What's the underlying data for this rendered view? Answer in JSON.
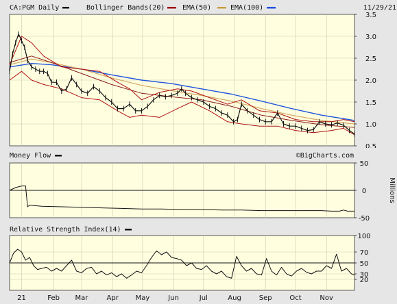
{
  "header": {
    "symbol_label": "CA:PGM Daily",
    "legend": [
      {
        "label": "Bollinger Bands(20)",
        "color": "#a01010"
      },
      {
        "label": "EMA(50)",
        "color": "#8b0000"
      },
      {
        "label": "EMA(100)",
        "color": "#c8a040"
      },
      {
        "label": "",
        "color": "#2050e0"
      }
    ],
    "date": "11/29/21"
  },
  "panels": {
    "money_flow_title": "Money Flow",
    "rsi_title": "Relative Strength Index(14)",
    "watermark": "©BigCharts.com",
    "mf_unit": "Millions"
  },
  "colors": {
    "plot_bg": "#ffffe0",
    "price": "#111111",
    "bollinger": "#b01010",
    "ema50": "#8b1a1a",
    "ema100": "#d2a860",
    "blue_avg": "#2255dd"
  },
  "x_axis": {
    "labels": [
      "21",
      "Feb",
      "Mar",
      "Apr",
      "May",
      "Jun",
      "Jul",
      "Aug",
      "Sep",
      "Oct",
      "Nov"
    ],
    "label_days": [
      0,
      32,
      60,
      91,
      121,
      152,
      182,
      213,
      244,
      274,
      305
    ],
    "domain_days": [
      -12,
      333
    ]
  },
  "chart_data": [
    {
      "type": "line",
      "title": "CA:PGM Daily",
      "ylim": [
        0.5,
        3.5
      ],
      "yticks": [
        0.5,
        1.0,
        1.5,
        2.0,
        2.5,
        3.0,
        3.5
      ],
      "ytick_labels": [
        "0.5",
        "1.0",
        "1.5",
        "2.0",
        "2.5",
        "3.0",
        "3.5"
      ],
      "series": [
        {
          "name": "CA:PGM",
          "x": [
            -12,
            -9,
            -6,
            -3,
            0,
            3,
            6,
            10,
            14,
            18,
            22,
            26,
            30,
            35,
            40,
            45,
            50,
            55,
            60,
            66,
            72,
            78,
            84,
            90,
            96,
            102,
            108,
            114,
            120,
            126,
            132,
            138,
            144,
            150,
            156,
            160,
            164,
            170,
            176,
            182,
            188,
            194,
            200,
            206,
            212,
            216,
            220,
            226,
            232,
            238,
            244,
            250,
            256,
            262,
            268,
            274,
            280,
            286,
            292,
            298,
            304,
            310,
            316,
            322,
            328,
            333
          ],
          "y": [
            2.2,
            2.6,
            2.85,
            3.05,
            2.9,
            2.75,
            2.45,
            2.3,
            2.25,
            2.2,
            2.2,
            2.15,
            1.95,
            1.95,
            1.75,
            1.8,
            2.05,
            1.9,
            1.75,
            1.7,
            1.85,
            1.75,
            1.6,
            1.5,
            1.35,
            1.35,
            1.45,
            1.3,
            1.3,
            1.4,
            1.55,
            1.65,
            1.62,
            1.65,
            1.7,
            1.8,
            1.7,
            1.6,
            1.55,
            1.5,
            1.4,
            1.35,
            1.25,
            1.2,
            1.05,
            1.1,
            1.45,
            1.3,
            1.2,
            1.1,
            1.05,
            1.05,
            1.25,
            1.0,
            0.95,
            0.95,
            0.9,
            0.85,
            0.87,
            1.05,
            1.0,
            0.98,
            1.02,
            0.97,
            0.85,
            0.77
          ]
        },
        {
          "name": "Bollinger Upper",
          "x": [
            -12,
            0,
            10,
            22,
            40,
            60,
            78,
            96,
            108,
            120,
            138,
            156,
            170,
            188,
            206,
            220,
            238,
            256,
            274,
            292,
            310,
            322,
            333
          ],
          "y": [
            2.35,
            3.0,
            2.85,
            2.55,
            2.3,
            2.25,
            2.2,
            1.95,
            1.8,
            1.55,
            1.72,
            1.8,
            1.75,
            1.6,
            1.45,
            1.55,
            1.3,
            1.25,
            1.1,
            1.05,
            1.05,
            1.1,
            1.05
          ]
        },
        {
          "name": "Bollinger Lower",
          "x": [
            -12,
            0,
            10,
            22,
            40,
            60,
            78,
            96,
            108,
            120,
            138,
            156,
            170,
            188,
            206,
            220,
            238,
            256,
            274,
            292,
            310,
            322,
            333
          ],
          "y": [
            2.0,
            2.2,
            2.0,
            1.9,
            1.8,
            1.6,
            1.55,
            1.3,
            1.15,
            1.2,
            1.15,
            1.35,
            1.5,
            1.3,
            1.05,
            1.0,
            0.95,
            0.95,
            0.85,
            0.8,
            0.85,
            0.9,
            0.75
          ]
        },
        {
          "name": "EMA(50)",
          "x": [
            -12,
            10,
            30,
            60,
            90,
            120,
            150,
            180,
            210,
            240,
            270,
            300,
            333
          ],
          "y": [
            2.4,
            2.55,
            2.4,
            2.15,
            1.9,
            1.7,
            1.62,
            1.55,
            1.4,
            1.2,
            1.08,
            0.98,
            0.92
          ]
        },
        {
          "name": "EMA(100)",
          "x": [
            -12,
            10,
            30,
            60,
            90,
            120,
            150,
            180,
            210,
            240,
            270,
            300,
            333
          ],
          "y": [
            2.35,
            2.48,
            2.4,
            2.25,
            2.05,
            1.88,
            1.76,
            1.65,
            1.52,
            1.35,
            1.2,
            1.08,
            1.0
          ]
        },
        {
          "name": "",
          "x": [
            -12,
            10,
            30,
            60,
            90,
            120,
            150,
            180,
            210,
            240,
            270,
            300,
            333
          ],
          "y": [
            2.3,
            2.38,
            2.35,
            2.25,
            2.12,
            2.0,
            1.92,
            1.8,
            1.68,
            1.52,
            1.35,
            1.2,
            1.08
          ]
        }
      ]
    },
    {
      "type": "line",
      "title": "Money Flow",
      "ylabel": "Millions",
      "ylim": [
        -50,
        50
      ],
      "yticks": [
        -50,
        0,
        50
      ],
      "ytick_labels": [
        "-50",
        "0",
        "50"
      ],
      "series": [
        {
          "name": "Money Flow",
          "x": [
            -12,
            -6,
            0,
            4,
            6,
            8,
            20,
            40,
            60,
            80,
            100,
            120,
            140,
            160,
            180,
            200,
            220,
            240,
            260,
            280,
            300,
            310,
            318,
            322,
            326,
            333
          ],
          "y": [
            0,
            5,
            8,
            8,
            -30,
            -27,
            -29,
            -30,
            -31,
            -32,
            -33,
            -34,
            -34,
            -35,
            -35,
            -36,
            -36,
            -37,
            -37,
            -37,
            -37,
            -38,
            -38,
            -36,
            -38,
            -38
          ]
        }
      ]
    },
    {
      "type": "line",
      "title": "Relative Strength Index(14)",
      "ylim": [
        0,
        100
      ],
      "yticks": [
        20,
        30,
        50,
        70,
        100
      ],
      "ytick_labels": [
        "20",
        "30",
        "50",
        "70",
        "100"
      ],
      "hlines": [
        50
      ],
      "series": [
        {
          "name": "RSI(14)",
          "x": [
            -12,
            -8,
            -4,
            0,
            4,
            8,
            12,
            16,
            20,
            25,
            30,
            35,
            40,
            45,
            50,
            55,
            60,
            65,
            70,
            75,
            80,
            85,
            90,
            95,
            100,
            105,
            110,
            115,
            120,
            125,
            130,
            135,
            140,
            145,
            150,
            155,
            160,
            165,
            170,
            175,
            180,
            185,
            190,
            195,
            200,
            205,
            210,
            215,
            220,
            225,
            230,
            235,
            240,
            245,
            250,
            255,
            260,
            265,
            270,
            275,
            280,
            285,
            290,
            295,
            300,
            305,
            310,
            315,
            320,
            325,
            330,
            333
          ],
          "y": [
            50,
            68,
            75,
            70,
            55,
            60,
            45,
            38,
            40,
            42,
            35,
            40,
            35,
            45,
            55,
            35,
            32,
            40,
            42,
            30,
            35,
            28,
            32,
            25,
            30,
            22,
            28,
            35,
            32,
            45,
            60,
            72,
            65,
            70,
            60,
            58,
            55,
            45,
            50,
            40,
            38,
            45,
            35,
            30,
            35,
            25,
            22,
            62,
            45,
            35,
            40,
            30,
            28,
            58,
            35,
            28,
            42,
            30,
            26,
            35,
            40,
            33,
            30,
            35,
            35,
            45,
            40,
            66,
            35,
            40,
            30,
            28
          ]
        }
      ]
    }
  ]
}
